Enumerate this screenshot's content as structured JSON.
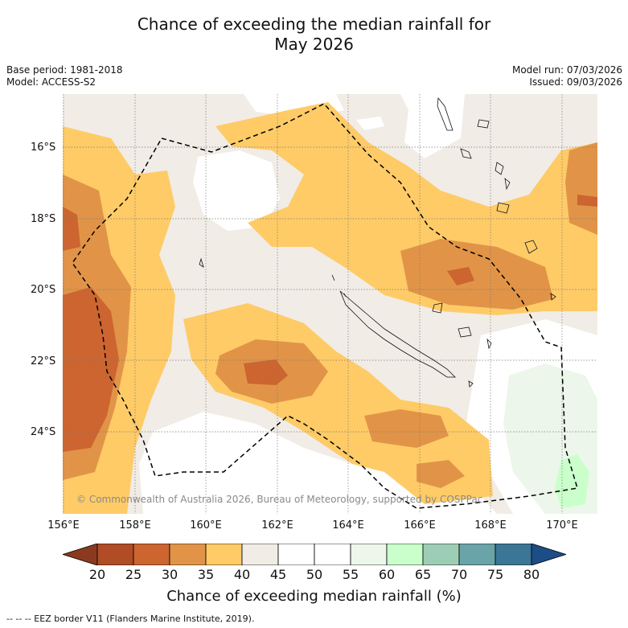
{
  "title_line1": "Chance of exceeding the median rainfall for",
  "title_line2": "May 2026",
  "base_period": "Base period: 1981-2018",
  "model": "Model: ACCESS-S2",
  "model_run": "Model run: 07/03/2026",
  "issued": "Issued: 09/03/2026",
  "lat_labels": [
    "16°S",
    "18°S",
    "20°S",
    "22°S",
    "24°S"
  ],
  "lon_labels": [
    "156°E",
    "158°E",
    "160°E",
    "162°E",
    "164°E",
    "166°E",
    "168°E",
    "170°E"
  ],
  "copyright": "© Commonwealth of Australia 2026, Bureau of Meteorology, supported by COSPPac",
  "colorbar": {
    "ticks": [
      "20",
      "25",
      "30",
      "35",
      "40",
      "45",
      "50",
      "55",
      "60",
      "65",
      "70",
      "75",
      "80"
    ],
    "below_color": "#8b3a1f",
    "colors": [
      "#b04c26",
      "#cc6530",
      "#e19447",
      "#fecb67",
      "#f1ece6",
      "#ffffff",
      "#ffffff",
      "#ecf6ea",
      "#caffcb",
      "#9ecdb6",
      "#6aa3a8",
      "#3c7697"
    ],
    "above_color": "#1c4d86",
    "label": "Chance of exceeding median rainfall (%)"
  },
  "footnote": "--  --  -- EEZ border V11 (Flanders Marine Institute, 2019)."
}
